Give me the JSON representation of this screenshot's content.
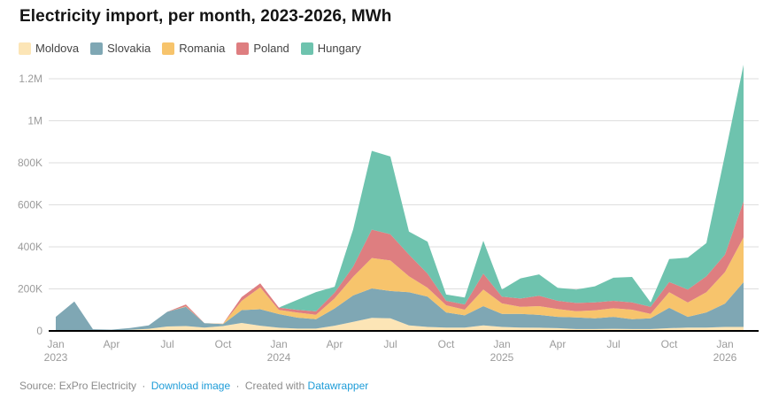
{
  "header": {
    "title": "Electricity import, per month, 2023-2026, MWh"
  },
  "legend": {
    "items": [
      {
        "label": "Moldova",
        "color": "#fce5b6"
      },
      {
        "label": "Slovakia",
        "color": "#7fa7b4"
      },
      {
        "label": "Romania",
        "color": "#f7c46c"
      },
      {
        "label": "Poland",
        "color": "#de7e80"
      },
      {
        "label": "Hungary",
        "color": "#6ec3ae"
      }
    ]
  },
  "chart_data": {
    "type": "area",
    "stacked": true,
    "title": "Electricity import, per month, 2023-2026, MWh",
    "unit": "MWh",
    "grid": "horizontal",
    "legend_position": "top",
    "ylim": [
      0,
      1260000
    ],
    "x": [
      "2023-01",
      "2023-02",
      "2023-03",
      "2023-04",
      "2023-05",
      "2023-06",
      "2023-07",
      "2023-08",
      "2023-09",
      "2023-10",
      "2023-11",
      "2023-12",
      "2024-01",
      "2024-02",
      "2024-03",
      "2024-04",
      "2024-05",
      "2024-06",
      "2024-07",
      "2024-08",
      "2024-09",
      "2024-10",
      "2024-11",
      "2024-12",
      "2025-01",
      "2025-02",
      "2025-03",
      "2025-04",
      "2025-05",
      "2025-06",
      "2025-07",
      "2025-08",
      "2025-09",
      "2025-10",
      "2025-11",
      "2025-12",
      "2026-01",
      "2026-02"
    ],
    "series": [
      {
        "name": "Moldova",
        "color": "#fce5b6",
        "values": [
          2000,
          3000,
          3000,
          2000,
          5000,
          10000,
          21000,
          23000,
          16000,
          23000,
          38000,
          25000,
          15000,
          11000,
          11000,
          25000,
          43000,
          62000,
          60000,
          26000,
          19000,
          16000,
          16000,
          26000,
          19000,
          16000,
          15000,
          13000,
          9000,
          9000,
          10000,
          9000,
          9000,
          13000,
          16000,
          16000,
          19000,
          19000
        ]
      },
      {
        "name": "Slovakia",
        "color": "#7fa7b4",
        "values": [
          65000,
          137000,
          5000,
          4000,
          9000,
          16000,
          70000,
          92000,
          21000,
          10000,
          61000,
          78000,
          65000,
          52000,
          45000,
          82000,
          126000,
          140000,
          130000,
          158000,
          144000,
          72000,
          58000,
          92000,
          62000,
          65000,
          61000,
          54000,
          55000,
          51000,
          57000,
          47000,
          51000,
          97000,
          51000,
          72000,
          111000,
          213000
        ]
      },
      {
        "name": "Romania",
        "color": "#f7c46c",
        "values": [
          0,
          0,
          0,
          0,
          0,
          0,
          0,
          2000,
          0,
          1000,
          44000,
          104000,
          20000,
          24000,
          21000,
          48000,
          89000,
          145000,
          145000,
          76000,
          42000,
          34000,
          27000,
          79000,
          50000,
          34000,
          42000,
          37000,
          30000,
          38000,
          41000,
          45000,
          21000,
          74000,
          68000,
          96000,
          150000,
          213000
        ]
      },
      {
        "name": "Poland",
        "color": "#de7e80",
        "values": [
          0,
          0,
          0,
          0,
          0,
          0,
          0,
          9000,
          0,
          1000,
          18000,
          19000,
          11000,
          13000,
          16000,
          27000,
          48000,
          135000,
          125000,
          103000,
          68000,
          21000,
          25000,
          76000,
          32000,
          39000,
          49000,
          39000,
          39000,
          38000,
          35000,
          35000,
          34000,
          49000,
          62000,
          76000,
          83000,
          172000
        ]
      },
      {
        "name": "Hungary",
        "color": "#6ec3ae",
        "values": [
          0,
          0,
          0,
          0,
          0,
          0,
          0,
          0,
          0,
          0,
          0,
          0,
          0,
          48000,
          92000,
          28000,
          178000,
          375000,
          370000,
          110000,
          152000,
          30000,
          33000,
          156000,
          34000,
          96000,
          102000,
          62000,
          64000,
          76000,
          110000,
          121000,
          21000,
          109000,
          152000,
          158000,
          475000,
          650000
        ]
      }
    ],
    "y_ticks": [
      {
        "value": 0,
        "label": "0"
      },
      {
        "value": 200000,
        "label": "200K"
      },
      {
        "value": 400000,
        "label": "400K"
      },
      {
        "value": 600000,
        "label": "600K"
      },
      {
        "value": 800000,
        "label": "800K"
      },
      {
        "value": 1000000,
        "label": "1M"
      },
      {
        "value": 1200000,
        "label": "1.2M"
      }
    ],
    "x_ticks": [
      {
        "index": 0,
        "label": "Jan",
        "year": "2023"
      },
      {
        "index": 3,
        "label": "Apr",
        "year": ""
      },
      {
        "index": 6,
        "label": "Jul",
        "year": ""
      },
      {
        "index": 9,
        "label": "Oct",
        "year": ""
      },
      {
        "index": 12,
        "label": "Jan",
        "year": "2024"
      },
      {
        "index": 15,
        "label": "Apr",
        "year": ""
      },
      {
        "index": 18,
        "label": "Jul",
        "year": ""
      },
      {
        "index": 21,
        "label": "Oct",
        "year": ""
      },
      {
        "index": 24,
        "label": "Jan",
        "year": "2025"
      },
      {
        "index": 27,
        "label": "Apr",
        "year": ""
      },
      {
        "index": 30,
        "label": "Jul",
        "year": ""
      },
      {
        "index": 33,
        "label": "Oct",
        "year": ""
      },
      {
        "index": 36,
        "label": "Jan",
        "year": "2026"
      }
    ]
  },
  "footer": {
    "source_prefix": "Source:",
    "source": "ExPro Electricity",
    "separator": "·",
    "download_link": "Download image",
    "created_with": "Created with",
    "tool_link": "Datawrapper"
  },
  "colors": {
    "link": "#1d9cd8",
    "axis_text": "#9b9b9b",
    "grid": "#dedede",
    "baseline": "#000000",
    "title": "#141414"
  }
}
